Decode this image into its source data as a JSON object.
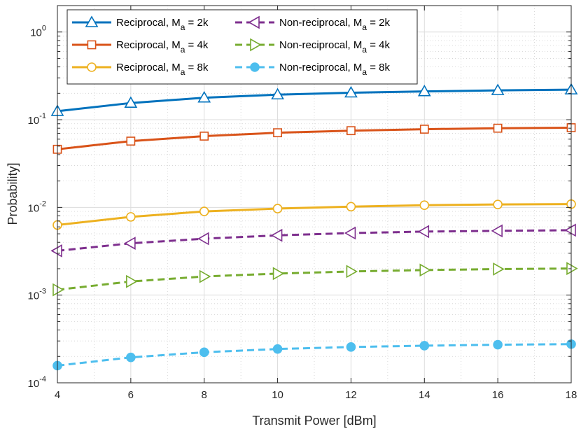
{
  "chart_data": {
    "type": "line",
    "xlabel": "Transmit Power [dBm]",
    "ylabel": "Probability]",
    "xscale": "linear",
    "yscale": "log",
    "xlim": [
      4,
      18
    ],
    "ylim": [
      0.0001,
      2
    ],
    "xticks": [
      "4",
      "6",
      "8",
      "10",
      "12",
      "14",
      "16",
      "18"
    ],
    "yticks": [
      {
        "value": 0.0001,
        "base": "10",
        "exp": "-4"
      },
      {
        "value": 0.001,
        "base": "10",
        "exp": "-3"
      },
      {
        "value": 0.01,
        "base": "10",
        "exp": "-2"
      },
      {
        "value": 0.1,
        "base": "10",
        "exp": "-1"
      },
      {
        "value": 1,
        "base": "10",
        "exp": "0"
      }
    ],
    "grid": true,
    "legend_position": "top-left",
    "x": [
      4,
      6,
      8,
      10,
      12,
      14,
      16,
      18
    ],
    "series": [
      {
        "name": "Reciprocal, M",
        "sub": "a",
        "suffix": " = 2k",
        "color": "#0072BD",
        "dash": "solid",
        "marker": "triangle-up",
        "filled": false,
        "values": [
          0.125,
          0.155,
          0.178,
          0.193,
          0.203,
          0.21,
          0.216,
          0.22
        ]
      },
      {
        "name": "Reciprocal, M",
        "sub": "a",
        "suffix": " = 4k",
        "color": "#D95319",
        "dash": "solid",
        "marker": "square",
        "filled": false,
        "values": [
          0.046,
          0.057,
          0.065,
          0.071,
          0.075,
          0.078,
          0.08,
          0.081
        ]
      },
      {
        "name": "Reciprocal, M",
        "sub": "a",
        "suffix": " = 8k",
        "color": "#EDB120",
        "dash": "solid",
        "marker": "circle",
        "filled": false,
        "values": [
          0.0063,
          0.0078,
          0.009,
          0.0097,
          0.0102,
          0.0106,
          0.0108,
          0.0109
        ]
      },
      {
        "name": "Non-reciprocal, M",
        "sub": "a",
        "suffix": " = 2k",
        "color": "#7E2F8E",
        "dash": "dashed",
        "marker": "triangle-left",
        "filled": false,
        "values": [
          0.0032,
          0.0039,
          0.0044,
          0.0048,
          0.0051,
          0.0053,
          0.0054,
          0.0055
        ]
      },
      {
        "name": "Non-reciprocal, M",
        "sub": "a",
        "suffix": " = 4k",
        "color": "#77AC30",
        "dash": "dashed",
        "marker": "triangle-right",
        "filled": false,
        "values": [
          0.00115,
          0.00143,
          0.00163,
          0.00176,
          0.00186,
          0.00193,
          0.00198,
          0.00201
        ]
      },
      {
        "name": "Non-reciprocal, M",
        "sub": "a",
        "suffix": " = 8k",
        "color": "#4DBEEE",
        "dash": "dashed",
        "marker": "circle",
        "filled": true,
        "values": [
          0.000157,
          0.000195,
          0.000223,
          0.000243,
          0.000256,
          0.000265,
          0.000272,
          0.000276
        ]
      }
    ]
  }
}
